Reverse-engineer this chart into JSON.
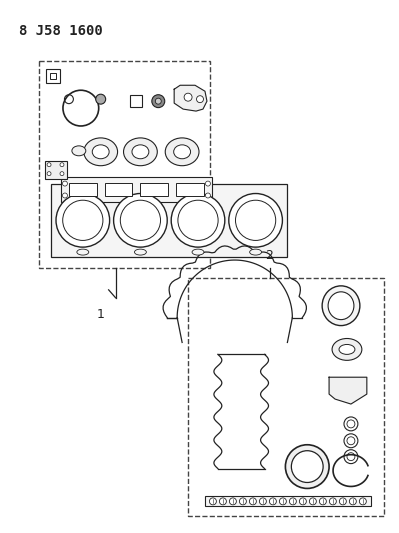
{
  "title": "8 J58 1600",
  "background_color": "#ffffff",
  "line_color": "#222222",
  "dashed_color": "#444444"
}
